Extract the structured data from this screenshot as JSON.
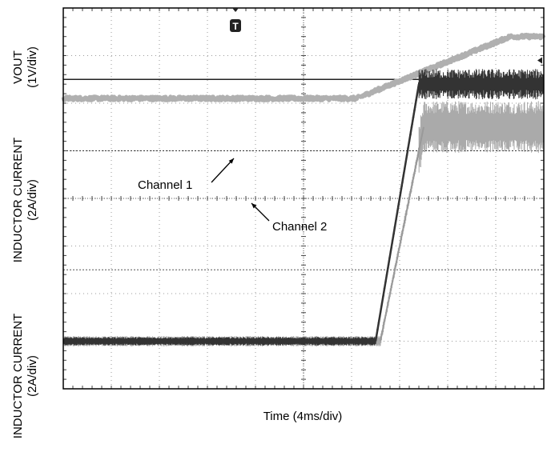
{
  "chart_data": {
    "type": "line",
    "title": "",
    "xlabel": "Time (4ms/div)",
    "grid": true,
    "divisions": {
      "x": 10,
      "y": 8
    },
    "xlim_div": [
      0,
      10
    ],
    "ylim_div": [
      0,
      8
    ],
    "trigger_marker": "T",
    "series": [
      {
        "name": "Channel 1",
        "color": "#333333",
        "x_div": [
          0,
          6.5,
          7.4,
          10
        ],
        "y_div": [
          1.0,
          1.0,
          6.4,
          6.4
        ],
        "note": "noisy band, ~0.4 div thick"
      },
      {
        "name": "Channel 2",
        "color": "#aaaaaa",
        "x_div": [
          0,
          6.6,
          7.5,
          10
        ],
        "y_div": [
          1.0,
          1.0,
          5.5,
          5.5
        ],
        "note": "wide noisy band at steady state"
      },
      {
        "name": "VOUT",
        "color": "#b0b0b0",
        "x_div": [
          0,
          6.1,
          9.3,
          10
        ],
        "y_div": [
          6.1,
          6.1,
          7.4,
          7.4
        ]
      }
    ],
    "reference_lines_y_div": [
      6.5,
      5.0,
      2.5
    ],
    "y_axis_labels": [
      {
        "text": "VOUT",
        "scale": "(1V/div)"
      },
      {
        "text": "INDUCTOR CURRENT",
        "scale": "(2A/div)"
      },
      {
        "text": "INDUCTOR CURRENT",
        "scale": "(2A/div)"
      }
    ],
    "annotations": [
      {
        "text": "Channel 1"
      },
      {
        "text": "Channel 2"
      }
    ]
  }
}
